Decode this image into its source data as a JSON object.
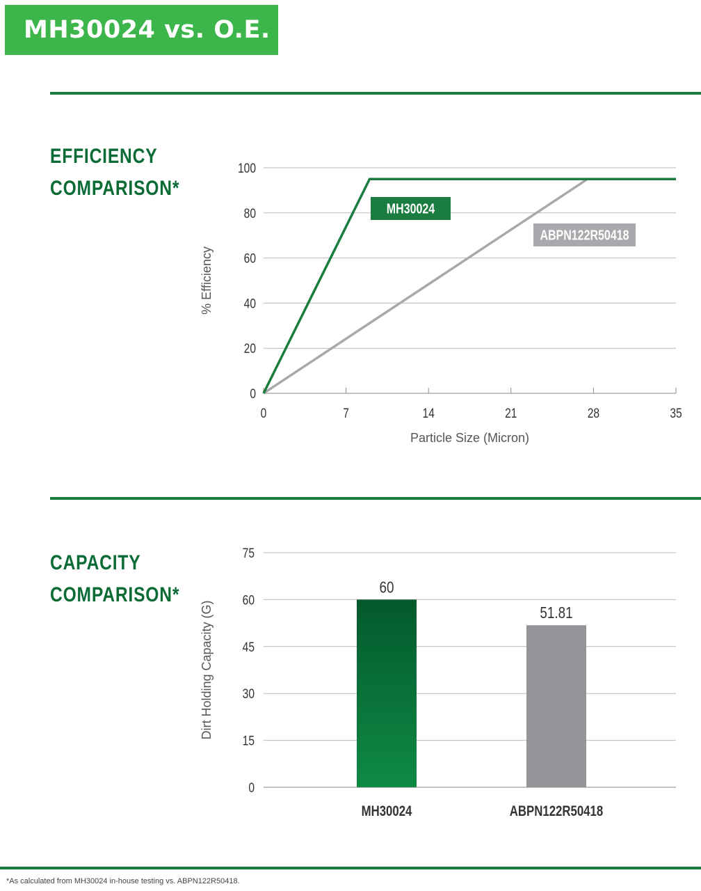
{
  "header": {
    "title": "MH30024 vs. O.E."
  },
  "sections": {
    "efficiency": {
      "title_line1": "EFFICIENCY",
      "title_line2": "COMPARISON*"
    },
    "capacity": {
      "title_line1": "CAPACITY",
      "title_line2": "COMPARISON*"
    }
  },
  "footnote": "*As calculated from MH30024 in-house testing vs. ABPN122R50418.",
  "colors": {
    "brand_green": "#3cb54a",
    "dark_green": "#0b6b35",
    "line_green": "#1a7c3e",
    "gray": "#a7a9ac"
  },
  "chart_data": [
    {
      "type": "line",
      "xlabel": "Particle Size (Micron)",
      "ylabel": "% Efficiency",
      "xlim": [
        0,
        35
      ],
      "ylim": [
        0,
        100
      ],
      "xticks": [
        0,
        7,
        14,
        21,
        28,
        35
      ],
      "yticks": [
        0,
        20,
        40,
        60,
        80,
        100
      ],
      "grid": "horizontal",
      "series": [
        {
          "name": "MH30024",
          "color": "#1a7c3e",
          "label_bg": "#1a7c3e",
          "x": [
            0,
            9,
            27.5,
            35
          ],
          "y": [
            0,
            95,
            95,
            95
          ]
        },
        {
          "name": "ABPN122R50418",
          "color": "#a7a9ac",
          "label_bg": "#a7a9ac",
          "x": [
            0,
            27.5,
            35
          ],
          "y": [
            0,
            95,
            95
          ]
        }
      ]
    },
    {
      "type": "bar",
      "xlabel": "",
      "ylabel": "Dirt Holding Capacity (G)",
      "ylim": [
        0,
        75
      ],
      "yticks": [
        0,
        15,
        30,
        45,
        60,
        75
      ],
      "grid": "horizontal",
      "categories": [
        "MH30024",
        "ABPN122R50418"
      ],
      "values": [
        60,
        51.81
      ],
      "value_labels": [
        "60",
        "51.81"
      ],
      "bar_colors": [
        "#0e8a45",
        "#939598"
      ]
    }
  ]
}
